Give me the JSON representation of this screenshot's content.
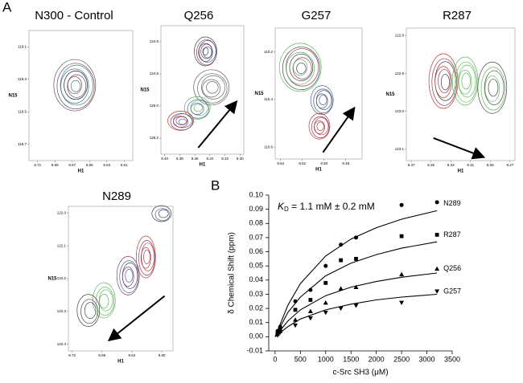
{
  "figure": {
    "panel_a": "A",
    "panel_b": "B"
  },
  "chart_data": [
    {
      "type": "contour",
      "title": "N300 - Control",
      "xlabel": "H1",
      "ylabel": "N15",
      "xlim": [
        8.72,
        8.6
      ],
      "ylim": [
        119.0,
        119.8
      ],
      "xreverse": true,
      "yreverse": true,
      "xticks": [
        8.71,
        8.69,
        8.67,
        8.65,
        8.63,
        8.61
      ],
      "yticks": [
        119.1,
        119.3,
        119.5,
        119.7
      ]
    },
    {
      "type": "contour",
      "title": "Q256",
      "xlabel": "H1",
      "ylabel": "N15",
      "xlim": [
        8.405,
        8.295
      ],
      "ylim": [
        124.5,
        125.3
      ],
      "xreverse": true,
      "yreverse": true,
      "xticks": [
        {
          "value": 8.4,
          "label": "8.40"
        },
        8.38,
        8.36,
        8.34,
        8.32,
        {
          "value": 8.3,
          "label": "8.30"
        }
      ],
      "yticks": [
        124.6,
        124.8,
        {
          "value": 125,
          "label": "125.0"
        },
        125.2
      ]
    },
    {
      "type": "contour",
      "title": "G257",
      "xlabel": "H1",
      "ylabel": "N15",
      "xlim": [
        8.545,
        8.465
      ],
      "ylim": [
        110.1,
        110.65
      ],
      "xreverse": true,
      "yreverse": true,
      "xticks": [
        8.54,
        8.52,
        {
          "value": 8.5,
          "label": "8.50"
        },
        8.48
      ],
      "yticks": [
        110.2,
        110.4,
        110.6
      ]
    },
    {
      "type": "contour",
      "title": "R287",
      "xlabel": "H1",
      "ylabel": "N15",
      "xlim": [
        8.375,
        8.265
      ],
      "ylim": [
        122.78,
        123.13
      ],
      "xreverse": true,
      "yreverse": true,
      "xticks": [
        8.37,
        8.35,
        8.33,
        8.31,
        8.29,
        8.27
      ],
      "yticks": [
        122.8,
        122.9,
        {
          "value": 123,
          "label": "123.0"
        },
        123.1
      ]
    },
    {
      "type": "contour",
      "title": "N289",
      "xlabel": "H1",
      "ylabel": "N15",
      "xlim": [
        8.725,
        8.585
      ],
      "ylim": [
        121.98,
        122.42
      ],
      "xreverse": true,
      "yreverse": true,
      "xticks": [
        8.72,
        8.68,
        8.64,
        {
          "value": 8.6,
          "label": "8.60"
        }
      ],
      "yticks": [
        {
          "value": 122,
          "label": "122.0"
        },
        122.1,
        122.2,
        122.3,
        122.4
      ]
    },
    {
      "type": "scatter",
      "xlabel": "c-Src SH3 (μM)",
      "ylabel": "δ Chemical Shift (ppm)",
      "annotation_k": "K",
      "annotation_sub": "D",
      "annotation_rest": " = 1.1 mM ± 0.2 mM",
      "xlim": [
        -125,
        3500
      ],
      "ylim": [
        -0.01,
        0.1
      ],
      "xticks": [
        0,
        500,
        1000,
        1500,
        2000,
        2500,
        3000,
        3500
      ],
      "yticks": [
        -0.01,
        {
          "value": 0,
          "label": "0.00"
        },
        0.01,
        0.02,
        0.03,
        0.04,
        0.05,
        0.06,
        0.07,
        0.08,
        0.09,
        {
          "value": 0.1,
          "label": "0.10"
        }
      ],
      "x": [
        50,
        100,
        400,
        700,
        1000,
        1300,
        1600,
        2500,
        3200
      ],
      "fit_x": [
        0,
        250,
        500,
        1000,
        1500,
        2000,
        2500,
        3200
      ],
      "series": [
        {
          "name": "N289",
          "marker": "circle",
          "color": "#000000",
          "values": [
            0.004,
            0.007,
            0.025,
            0.033,
            0.05,
            0.065,
            0.07,
            0.093,
            0.095
          ],
          "fit_values": [
            0,
            0.022,
            0.0375,
            0.057,
            0.069,
            0.077,
            0.083,
            0.089
          ]
        },
        {
          "name": "R287",
          "marker": "square",
          "color": "#000000",
          "values": [
            0.003,
            0.005,
            0.019,
            0.026,
            0.038,
            0.054,
            0.055,
            0.071,
            0.072
          ],
          "fit_values": [
            0,
            0.017,
            0.028,
            0.043,
            0.052,
            0.058,
            0.0625,
            0.067
          ]
        },
        {
          "name": "Q256",
          "marker": "triangle-up",
          "color": "#000000",
          "values": [
            0.002,
            0.004,
            0.012,
            0.018,
            0.024,
            0.034,
            0.035,
            0.044,
            0.048
          ],
          "fit_values": [
            0,
            0.011,
            0.019,
            0.029,
            0.035,
            0.039,
            0.042,
            0.045
          ]
        },
        {
          "name": "G257",
          "marker": "triangle-down",
          "color": "#000000",
          "values": [
            0.001,
            0.003,
            0.008,
            0.013,
            0.017,
            0.02,
            0.022,
            0.024,
            0.032
          ],
          "fit_values": [
            0,
            0.007,
            0.0125,
            0.019,
            0.023,
            0.026,
            0.028,
            0.03
          ]
        }
      ]
    }
  ]
}
